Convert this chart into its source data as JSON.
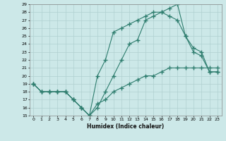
{
  "xlabel": "Humidex (Indice chaleur)",
  "xlim": [
    -0.5,
    23.5
  ],
  "ylim": [
    15,
    29
  ],
  "xticks": [
    0,
    1,
    2,
    3,
    4,
    5,
    6,
    7,
    8,
    9,
    10,
    11,
    12,
    13,
    14,
    15,
    16,
    17,
    18,
    19,
    20,
    21,
    22,
    23
  ],
  "yticks": [
    15,
    16,
    17,
    18,
    19,
    20,
    21,
    22,
    23,
    24,
    25,
    26,
    27,
    28,
    29
  ],
  "color": "#2e7d6e",
  "bg_color": "#cce8e8",
  "grid_color": "#b0d0d0",
  "line1_x": [
    0,
    1,
    2,
    3,
    4,
    5,
    6,
    7,
    8,
    9,
    10,
    11,
    12,
    13,
    14,
    15,
    16,
    17,
    18,
    19,
    20,
    21,
    22,
    23
  ],
  "line1_y": [
    19,
    18,
    18,
    18,
    18,
    17,
    16,
    15,
    16,
    18,
    20,
    22,
    24,
    24.5,
    27,
    27.5,
    28,
    28.5,
    29,
    25,
    23.5,
    23,
    20.5,
    20.5
  ],
  "line2_x": [
    0,
    1,
    2,
    3,
    4,
    5,
    6,
    7,
    8,
    9,
    10,
    11,
    12,
    13,
    14,
    15,
    16,
    17,
    18,
    19,
    20,
    21,
    22,
    23
  ],
  "line2_y": [
    19,
    18,
    18,
    18,
    18,
    17,
    16,
    15,
    16.5,
    17,
    18,
    18.5,
    19,
    19.5,
    20,
    20,
    20.5,
    21,
    21,
    21,
    21,
    21,
    21,
    21
  ],
  "line3_x": [
    0,
    1,
    2,
    3,
    4,
    5,
    6,
    7,
    8,
    9,
    10,
    11,
    12,
    13,
    14,
    15,
    16,
    17,
    18,
    19,
    20,
    21,
    22,
    23
  ],
  "line3_y": [
    19,
    18,
    18,
    18,
    18,
    17,
    16,
    15,
    20,
    22,
    25.5,
    26,
    26.5,
    27,
    27.5,
    28,
    28,
    27.5,
    27,
    25,
    23,
    22.5,
    20.5,
    20.5
  ]
}
